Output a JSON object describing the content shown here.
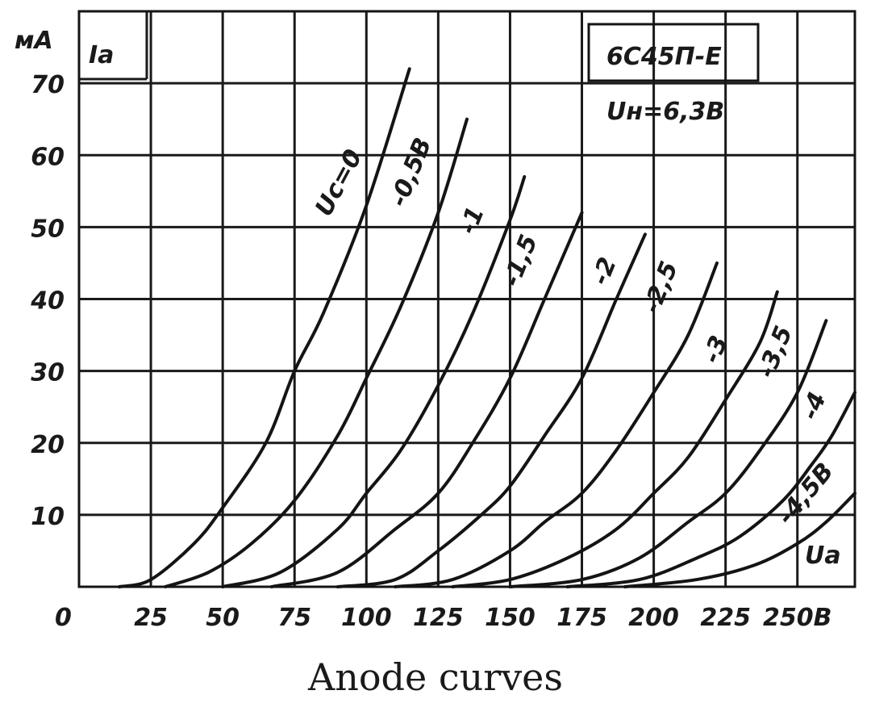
{
  "caption": "Anode curves",
  "chart_data": {
    "type": "line",
    "title": "6С45П-Е",
    "subtitle": "Uн=6,3В",
    "ylabel": "Ia",
    "yunit": "мА",
    "xlabel": "Ua",
    "xlim": [
      0,
      270
    ],
    "ylim": [
      0,
      80
    ],
    "x_ticks": [
      "0",
      "25",
      "50",
      "75",
      "100",
      "125",
      "150",
      "175",
      "200",
      "225",
      "250В"
    ],
    "x_tick_values": [
      0,
      25,
      50,
      75,
      100,
      125,
      150,
      175,
      200,
      225,
      250
    ],
    "y_ticks": [
      "10",
      "20",
      "30",
      "40",
      "50",
      "60",
      "70"
    ],
    "y_tick_values": [
      10,
      20,
      30,
      40,
      50,
      60,
      70
    ],
    "grid": true,
    "series": [
      {
        "name": "Uc=0",
        "x": [
          14,
          25,
          40,
          50,
          65,
          75,
          85,
          100,
          115
        ],
        "y": [
          0,
          1,
          6,
          11,
          20,
          30,
          38,
          53,
          72
        ]
      },
      {
        "name": "-0,5В",
        "x": [
          30,
          45,
          60,
          75,
          90,
          100,
          112,
          125,
          135
        ],
        "y": [
          0,
          2,
          6,
          12,
          21,
          29,
          39,
          52,
          65
        ]
      },
      {
        "name": "-1",
        "x": [
          50,
          70,
          90,
          100,
          112,
          125,
          137,
          150,
          155
        ],
        "y": [
          0,
          2,
          8,
          13,
          19,
          28,
          38,
          51,
          57
        ]
      },
      {
        "name": "-1,5",
        "x": [
          67,
          90,
          110,
          125,
          137,
          150,
          162,
          175
        ],
        "y": [
          0,
          2,
          8,
          13,
          20,
          29,
          40,
          52
        ]
      },
      {
        "name": "-2",
        "x": [
          90,
          110,
          125,
          140,
          150,
          162,
          175,
          187,
          197
        ],
        "y": [
          0,
          1,
          5,
          10,
          14,
          21,
          29,
          40,
          49
        ]
      },
      {
        "name": "-2,5",
        "x": [
          110,
          130,
          150,
          162,
          175,
          187,
          200,
          212,
          222
        ],
        "y": [
          0,
          1,
          5,
          9,
          13,
          19,
          27,
          35,
          45
        ]
      },
      {
        "name": "-3",
        "x": [
          130,
          150,
          170,
          187,
          200,
          212,
          225,
          237,
          243
        ],
        "y": [
          0,
          1,
          4,
          8,
          13,
          18,
          26,
          34,
          41
        ]
      },
      {
        "name": "-3,5",
        "x": [
          150,
          175,
          195,
          212,
          225,
          237,
          250,
          260
        ],
        "y": [
          0,
          1,
          4,
          9,
          13,
          19,
          27,
          37
        ]
      },
      {
        "name": "-4",
        "x": [
          170,
          195,
          215,
          230,
          245,
          255,
          262,
          270
        ],
        "y": [
          0,
          1,
          4,
          7,
          12,
          17,
          21,
          27
        ]
      },
      {
        "name": "-4,5В",
        "x": [
          190,
          215,
          235,
          250,
          260,
          270
        ],
        "y": [
          0,
          1,
          3,
          6,
          9,
          13
        ]
      }
    ],
    "series_labels": [
      "Uc=0",
      "-0,5В",
      "-1",
      "-1,5",
      "-2",
      "-2,5",
      "-3",
      "-3,5",
      "-4",
      "-4,5В"
    ]
  }
}
